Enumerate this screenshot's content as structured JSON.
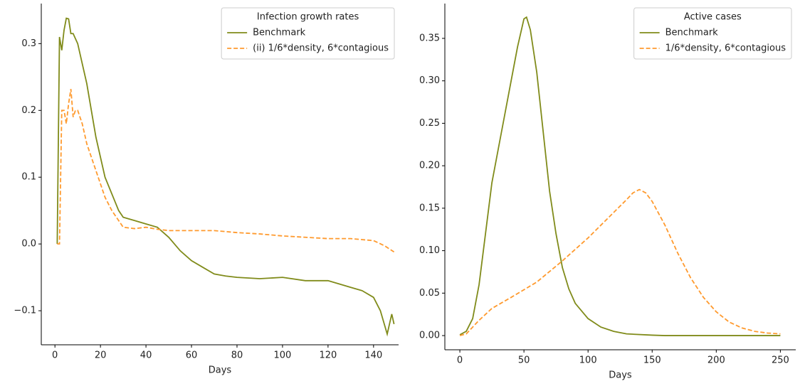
{
  "chart_data": [
    {
      "type": "line",
      "xlabel": "Days",
      "legend_title": "Infection growth rates",
      "legend": "upper right",
      "grid": false,
      "xlim": [
        -6,
        151
      ],
      "xticks": [
        0,
        20,
        40,
        60,
        80,
        100,
        120,
        140
      ],
      "ylim": [
        -0.151,
        0.36
      ],
      "yticks": [
        {
          "value": -0.1,
          "label": "−0.1"
        },
        {
          "value": 0,
          "label": "0.0"
        },
        0.1,
        0.2,
        0.3
      ],
      "series": [
        {
          "name": "Benchmark",
          "color": "#808b1a",
          "linestyle": "solid",
          "x": [
            1,
            2,
            3,
            4,
            5,
            6,
            7,
            8,
            10,
            12,
            14,
            16,
            18,
            20,
            22,
            25,
            28,
            30,
            35,
            40,
            45,
            50,
            55,
            60,
            65,
            70,
            75,
            80,
            90,
            100,
            110,
            120,
            125,
            130,
            135,
            140,
            143,
            146,
            148,
            149
          ],
          "values": [
            0,
            0.31,
            0.29,
            0.32,
            0.338,
            0.337,
            0.315,
            0.315,
            0.3,
            0.27,
            0.24,
            0.2,
            0.16,
            0.13,
            0.1,
            0.075,
            0.05,
            0.04,
            0.035,
            0.03,
            0.025,
            0.01,
            -0.01,
            -0.025,
            -0.035,
            -0.045,
            -0.048,
            -0.05,
            -0.052,
            -0.05,
            -0.055,
            -0.055,
            -0.06,
            -0.065,
            -0.07,
            -0.08,
            -0.1,
            -0.135,
            -0.105,
            -0.12
          ]
        },
        {
          "name": "(ii) 1/6*density, 6*contagious",
          "color": "#ff9a2e",
          "linestyle": "dashed",
          "x": [
            1,
            2,
            3,
            4,
            5,
            6,
            7,
            8,
            9,
            10,
            12,
            14,
            16,
            18,
            20,
            22,
            25,
            28,
            30,
            35,
            40,
            45,
            50,
            60,
            70,
            80,
            90,
            100,
            110,
            120,
            130,
            140,
            145,
            149
          ],
          "values": [
            0,
            0,
            0.2,
            0.2,
            0.18,
            0.21,
            0.232,
            0.19,
            0.2,
            0.2,
            0.18,
            0.15,
            0.13,
            0.11,
            0.09,
            0.07,
            0.05,
            0.035,
            0.025,
            0.023,
            0.025,
            0.022,
            0.02,
            0.02,
            0.02,
            0.017,
            0.015,
            0.012,
            0.01,
            0.008,
            0.008,
            0.005,
            -0.003,
            -0.012
          ]
        }
      ]
    },
    {
      "type": "line",
      "xlabel": "Days",
      "legend_title": "Active cases",
      "legend": "upper right",
      "grid": false,
      "xlim": [
        -11.7,
        262
      ],
      "xticks": [
        0,
        50,
        100,
        150,
        200,
        250
      ],
      "ylim": [
        -0.0167,
        0.391
      ],
      "yticks": [
        {
          "value": 0,
          "label": "0.00"
        },
        0.05,
        {
          "value": 0.1,
          "label": "0.10"
        },
        0.15,
        {
          "value": 0.2,
          "label": "0.20"
        },
        0.25,
        {
          "value": 0.3,
          "label": "0.30"
        },
        0.35
      ],
      "series": [
        {
          "name": "Benchmark",
          "color": "#808b1a",
          "linestyle": "solid",
          "x": [
            0,
            5,
            10,
            15,
            20,
            25,
            30,
            35,
            40,
            45,
            50,
            52,
            55,
            60,
            65,
            70,
            75,
            80,
            85,
            90,
            100,
            110,
            120,
            130,
            150,
            160,
            200,
            250
          ],
          "values": [
            0.001,
            0.005,
            0.02,
            0.06,
            0.12,
            0.18,
            0.22,
            0.26,
            0.3,
            0.34,
            0.373,
            0.375,
            0.36,
            0.31,
            0.24,
            0.17,
            0.12,
            0.08,
            0.055,
            0.038,
            0.02,
            0.01,
            0.005,
            0.002,
            0.0005,
            0,
            0,
            0
          ]
        },
        {
          "name": "1/6*density, 6*contagious",
          "color": "#ff9a2e",
          "linestyle": "dashed",
          "x": [
            0,
            5,
            10,
            15,
            20,
            25,
            40,
            60,
            80,
            100,
            120,
            130,
            135,
            140,
            145,
            150,
            160,
            170,
            180,
            190,
            200,
            210,
            220,
            230,
            240,
            250
          ],
          "values": [
            0,
            0.002,
            0.01,
            0.018,
            0.025,
            0.032,
            0.045,
            0.063,
            0.088,
            0.115,
            0.145,
            0.16,
            0.168,
            0.172,
            0.168,
            0.158,
            0.13,
            0.097,
            0.068,
            0.045,
            0.028,
            0.016,
            0.009,
            0.005,
            0.003,
            0.002
          ]
        }
      ]
    }
  ]
}
